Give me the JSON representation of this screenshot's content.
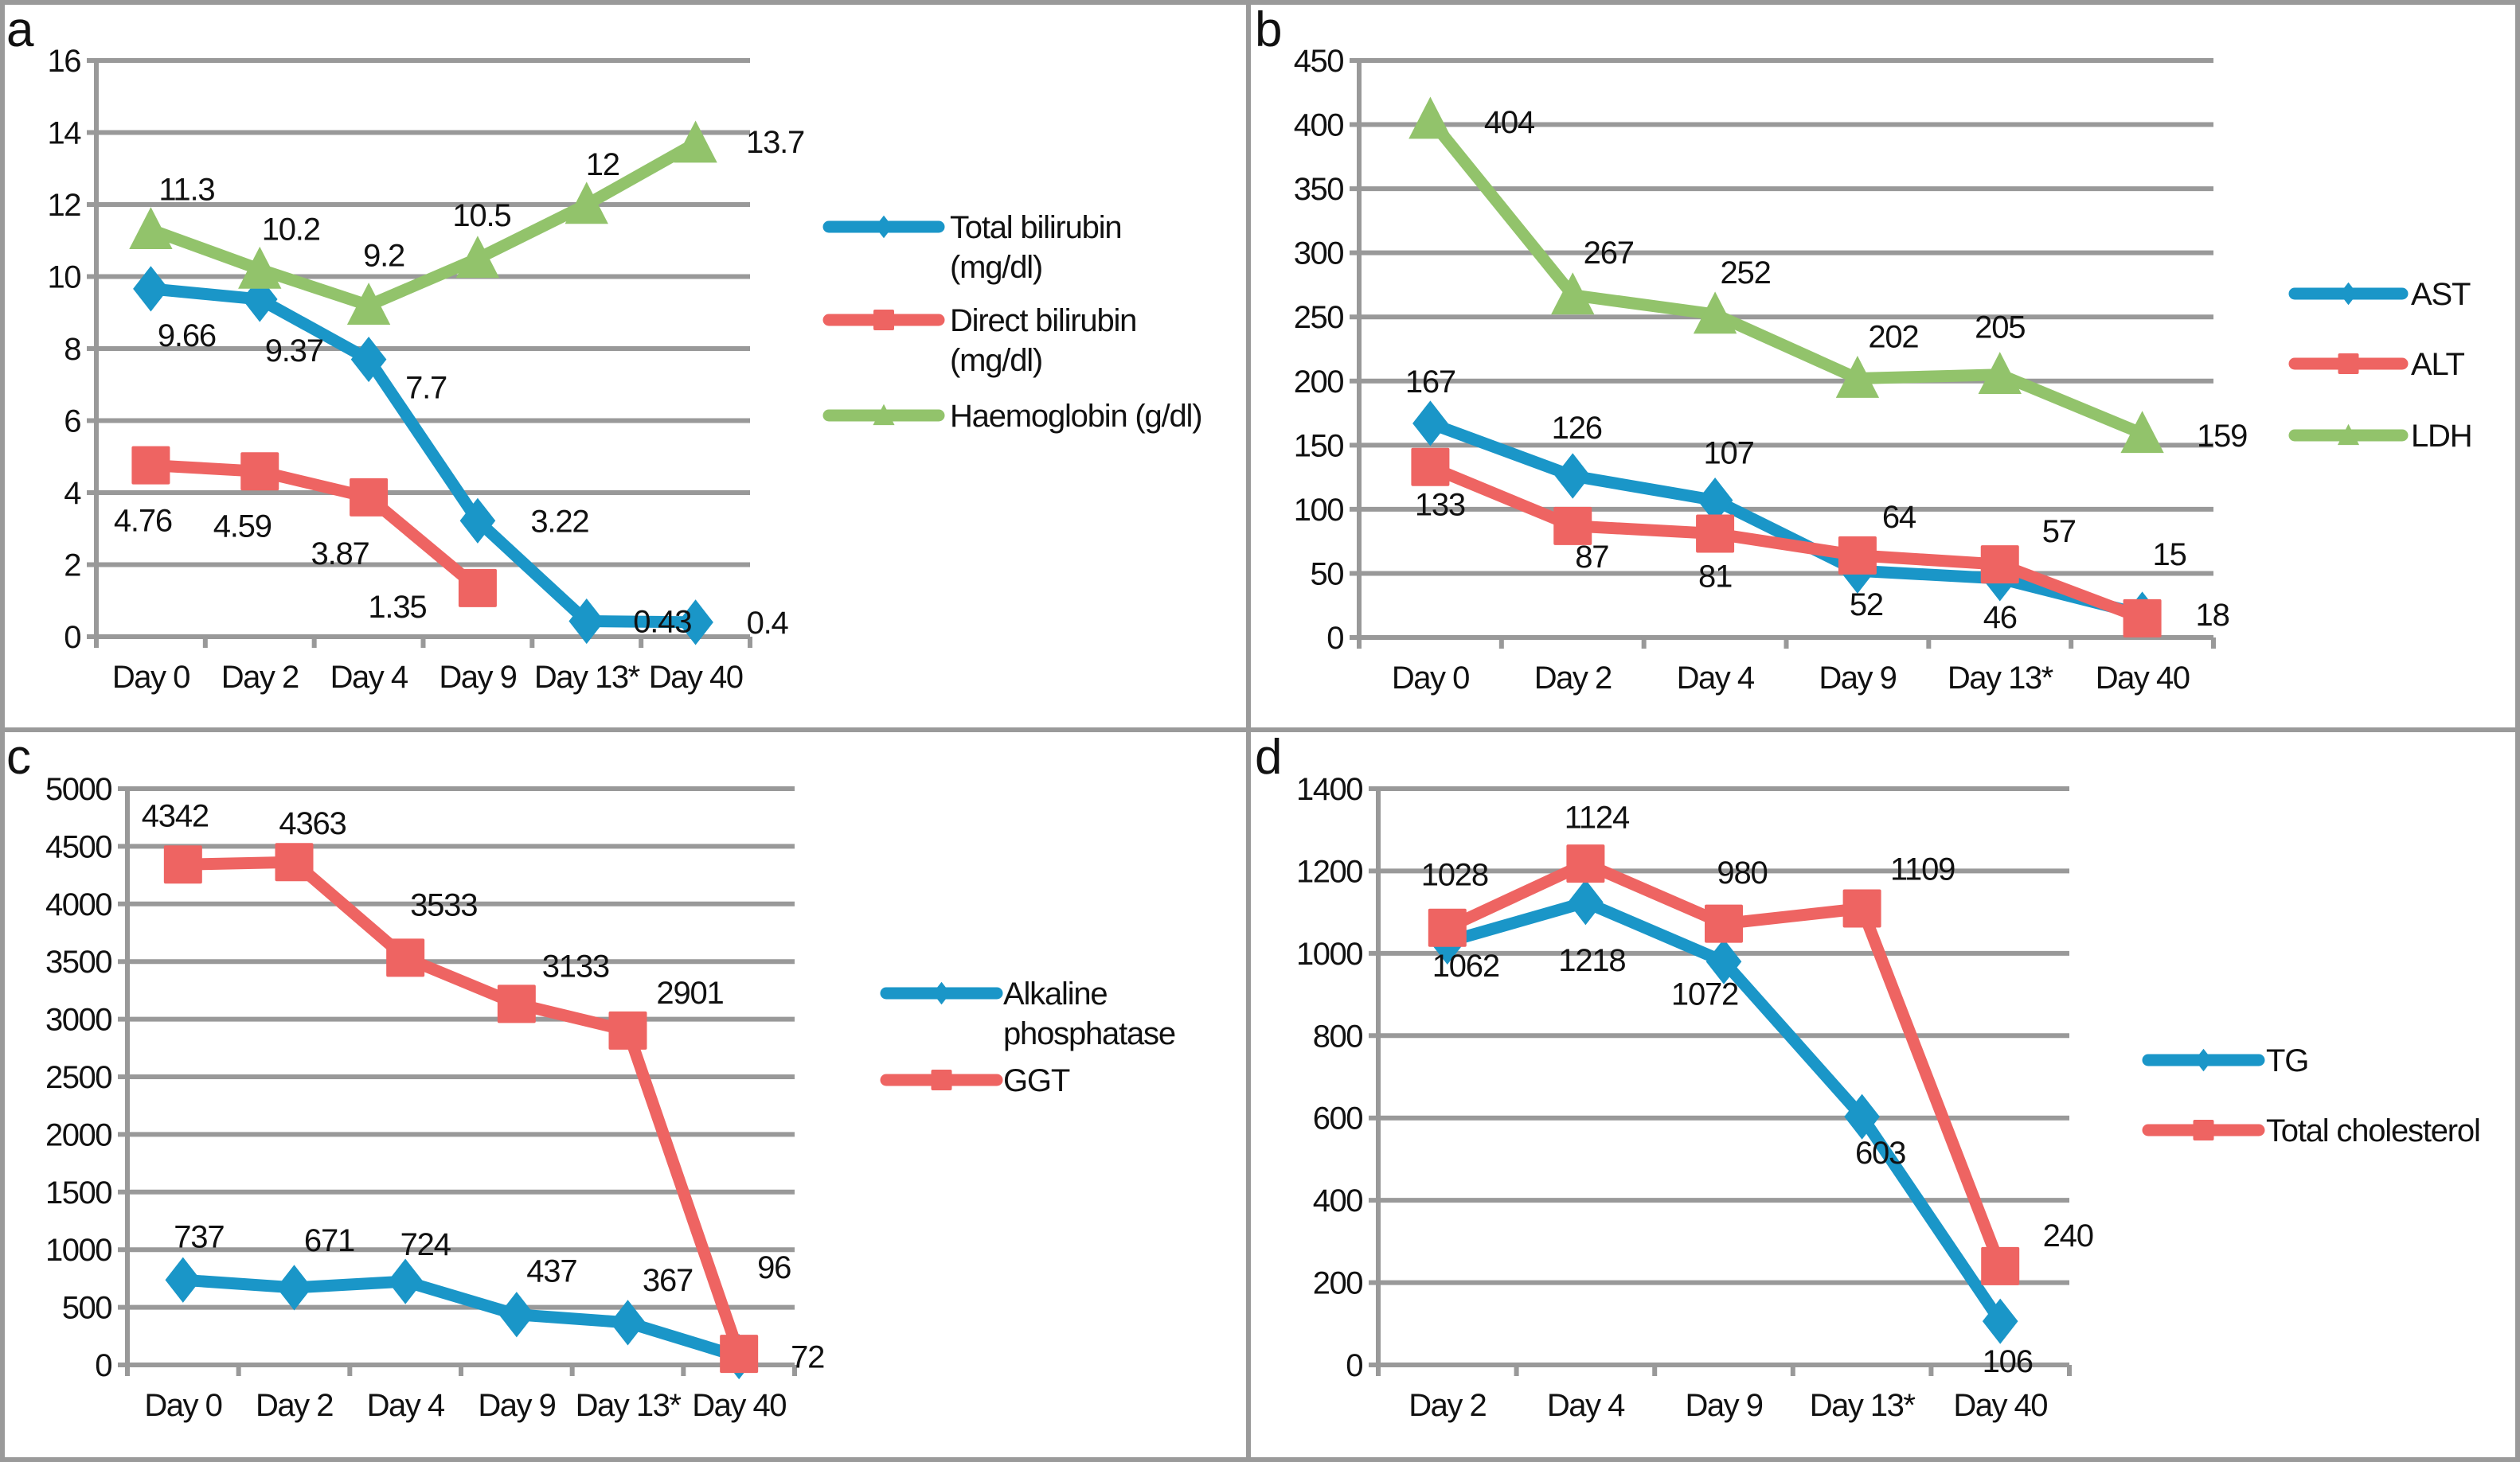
{
  "figure": {
    "colors": {
      "blue": "#1a96c8",
      "red": "#ee6462",
      "green": "#92c36b",
      "grid": "#999999",
      "border": "#9a9a9a"
    }
  },
  "chart_data": [
    {
      "panel": "a",
      "type": "line",
      "title": "",
      "xlabel": "",
      "ylabel": "",
      "categories": [
        "Day 0",
        "Day 2",
        "Day 4",
        "Day 9",
        "Day 13*",
        "Day 40"
      ],
      "ylim": [
        0,
        16
      ],
      "yticks": [
        0,
        2,
        4,
        6,
        8,
        10,
        12,
        14,
        16
      ],
      "grid": true,
      "legend_position": "right",
      "series": [
        {
          "name": "Total bilirubin (mg/dl)",
          "legend_lines": [
            "Total bilirubin",
            "(mg/dl)"
          ],
          "color": "#1a96c8",
          "marker": "diamond",
          "values": [
            9.66,
            9.37,
            7.7,
            3.22,
            0.43,
            0.4
          ],
          "labels": [
            "9.66",
            "9.37",
            "7.7",
            "3.22",
            "0.43",
            "0.4"
          ]
        },
        {
          "name": "Direct bilirubin (mg/dl)",
          "legend_lines": [
            "Direct bilirubin",
            "(mg/dl)"
          ],
          "color": "#ee6462",
          "marker": "square",
          "values": [
            4.76,
            4.59,
            3.87,
            1.35,
            null,
            null
          ],
          "labels": [
            "4.76",
            "4.59",
            "3.87",
            "1.35",
            null,
            null
          ]
        },
        {
          "name": "Haemoglobin (g/dl)",
          "legend_lines": [
            "Haemoglobin (g/dl)"
          ],
          "color": "#92c36b",
          "marker": "triangle",
          "values": [
            11.3,
            10.2,
            9.2,
            10.5,
            12,
            13.7
          ],
          "labels": [
            "11.3",
            "10.2",
            "9.2",
            "10.5",
            "12",
            "13.7"
          ]
        }
      ]
    },
    {
      "panel": "b",
      "type": "line",
      "title": "",
      "xlabel": "",
      "ylabel": "",
      "categories": [
        "Day 0",
        "Day 2",
        "Day 4",
        "Day 9",
        "Day 13*",
        "Day 40"
      ],
      "ylim": [
        0,
        450
      ],
      "yticks": [
        0,
        50,
        100,
        150,
        200,
        250,
        300,
        350,
        400,
        450
      ],
      "grid": true,
      "legend_position": "right",
      "series": [
        {
          "name": "AST",
          "legend_lines": [
            "AST"
          ],
          "color": "#1a96c8",
          "marker": "diamond",
          "values": [
            167,
            126,
            107,
            52,
            46,
            18
          ],
          "labels": [
            "167",
            "126",
            "107",
            "52",
            "46",
            "18"
          ]
        },
        {
          "name": "ALT",
          "legend_lines": [
            "ALT"
          ],
          "color": "#ee6462",
          "marker": "square",
          "values": [
            133,
            87,
            81,
            64,
            57,
            15
          ],
          "labels": [
            "133",
            "87",
            "81",
            "64",
            "57",
            "15"
          ]
        },
        {
          "name": "LDH",
          "legend_lines": [
            "LDH"
          ],
          "color": "#92c36b",
          "marker": "triangle",
          "values": [
            404,
            267,
            252,
            202,
            205,
            159
          ],
          "labels": [
            "404",
            "267",
            "252",
            "202",
            "205",
            "159"
          ]
        }
      ]
    },
    {
      "panel": "c",
      "type": "line",
      "title": "",
      "xlabel": "",
      "ylabel": "",
      "categories": [
        "Day 0",
        "Day 2",
        "Day 4",
        "Day 9",
        "Day 13*",
        "Day 40"
      ],
      "ylim": [
        0,
        5000
      ],
      "yticks": [
        0,
        500,
        1000,
        1500,
        2000,
        2500,
        3000,
        3500,
        4000,
        4500,
        5000
      ],
      "grid": true,
      "legend_position": "right",
      "series": [
        {
          "name": "Alkaline phosphatase",
          "legend_lines": [
            "Alkaline",
            "phosphatase"
          ],
          "color": "#1a96c8",
          "marker": "diamond",
          "values": [
            737,
            671,
            724,
            437,
            367,
            72
          ],
          "labels": [
            "737",
            "671",
            "724",
            "437",
            "367",
            "72"
          ]
        },
        {
          "name": "GGT",
          "legend_lines": [
            "GGT"
          ],
          "color": "#ee6462",
          "marker": "square",
          "values": [
            4342,
            4363,
            3533,
            3133,
            2901,
            96
          ],
          "labels": [
            "4342",
            "4363",
            "3533",
            "3133",
            "2901",
            "96"
          ]
        }
      ]
    },
    {
      "panel": "d",
      "type": "line",
      "title": "",
      "xlabel": "",
      "ylabel": "",
      "categories": [
        "Day 2",
        "Day 4",
        "Day 9",
        "Day 13*",
        "Day 40"
      ],
      "ylim": [
        0,
        1400
      ],
      "yticks": [
        0,
        200,
        400,
        600,
        800,
        1000,
        1200,
        1400
      ],
      "grid": true,
      "legend_position": "right",
      "series": [
        {
          "name": "TG",
          "legend_lines": [
            "TG"
          ],
          "color": "#1a96c8",
          "marker": "diamond",
          "values": [
            1028,
            1124,
            980,
            603,
            106
          ],
          "labels": [
            "1028",
            "1124",
            "980",
            "603",
            "106"
          ]
        },
        {
          "name": "Total cholesterol",
          "legend_lines": [
            "Total cholesterol"
          ],
          "color": "#ee6462",
          "marker": "square",
          "values": [
            1062,
            1218,
            1072,
            1109,
            240
          ],
          "labels": [
            "1062",
            "1218",
            "1072",
            "1109",
            "240"
          ]
        }
      ]
    }
  ]
}
